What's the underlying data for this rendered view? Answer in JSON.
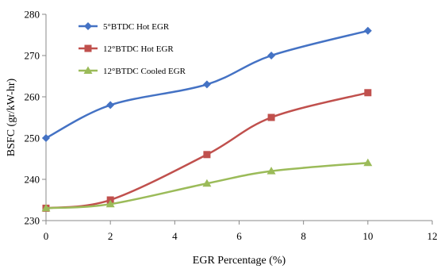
{
  "chart_data": {
    "type": "line",
    "title": "",
    "xlabel": "EGR Percentage (%)",
    "ylabel": "BSFC (gr/kW-hr)",
    "xlim": [
      0,
      12
    ],
    "ylim": [
      230,
      280
    ],
    "xticks": [
      0,
      2,
      4,
      6,
      8,
      10,
      12
    ],
    "yticks": [
      230,
      240,
      250,
      260,
      270,
      280
    ],
    "grid": false,
    "legend_position": "top-left",
    "x": [
      0,
      2,
      5,
      7,
      10
    ],
    "series": [
      {
        "name": "5°BTDC Hot EGR",
        "values": [
          250,
          258,
          263,
          270,
          276
        ],
        "color": "#4472C4",
        "marker": "diamond"
      },
      {
        "name": "12°BTDC Hot EGR",
        "values": [
          233,
          235,
          246,
          255,
          261
        ],
        "color": "#C0504D",
        "marker": "square"
      },
      {
        "name": "12°BTDC Cooled EGR",
        "values": [
          233,
          234,
          239,
          242,
          244
        ],
        "color": "#9BBB59",
        "marker": "triangle"
      }
    ]
  }
}
